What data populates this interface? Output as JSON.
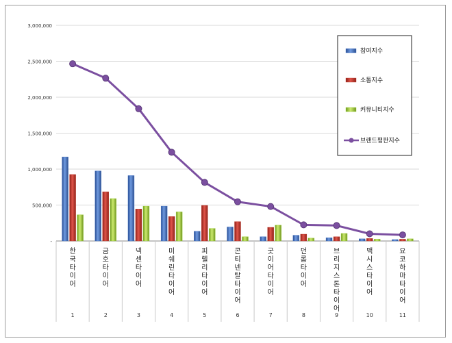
{
  "chart_data": {
    "type": "bar",
    "y_ticks": [
      "-",
      "500,000",
      "1,000,000",
      "1,500,000",
      "2,000,000",
      "2,500,000",
      "3,000,000"
    ],
    "ylim": [
      0,
      3000000
    ],
    "grid": true,
    "legend_position": "right",
    "categories": [
      {
        "index": "1",
        "label": "한국타이어"
      },
      {
        "index": "2",
        "label": "금호타이어"
      },
      {
        "index": "3",
        "label": "넥센타이어"
      },
      {
        "index": "4",
        "label": "미쉐린타이어"
      },
      {
        "index": "5",
        "label": "피렐리타이어"
      },
      {
        "index": "6",
        "label": "콘티넨탈타이어"
      },
      {
        "index": "7",
        "label": "굿이어타이어"
      },
      {
        "index": "8",
        "label": "던롭타이어"
      },
      {
        "index": "9",
        "label": "브리지스톤타이어"
      },
      {
        "index": "10",
        "label": "맥시스타이어"
      },
      {
        "index": "11",
        "label": "요코하마타이어"
      }
    ],
    "series": [
      {
        "name": "참여지수",
        "type": "bar",
        "color": "#3f6fc4",
        "values": [
          1170000,
          975000,
          910000,
          485000,
          135000,
          195000,
          60000,
          80000,
          45000,
          30000,
          20000
        ]
      },
      {
        "name": "소통지수",
        "type": "bar",
        "color": "#c0392b",
        "values": [
          925000,
          685000,
          445000,
          340000,
          495000,
          270000,
          190000,
          95000,
          60000,
          35000,
          25000
        ]
      },
      {
        "name": "커뮤니티지수",
        "type": "bar",
        "color": "#9acd32",
        "values": [
          365000,
          590000,
          485000,
          405000,
          175000,
          60000,
          220000,
          40000,
          105000,
          25000,
          30000
        ]
      },
      {
        "name": "브랜드평판지수",
        "type": "line",
        "color": "#7b4fa0",
        "values": [
          2465000,
          2265000,
          1840000,
          1235000,
          815000,
          545000,
          480000,
          225000,
          215000,
          100000,
          85000
        ]
      }
    ]
  }
}
